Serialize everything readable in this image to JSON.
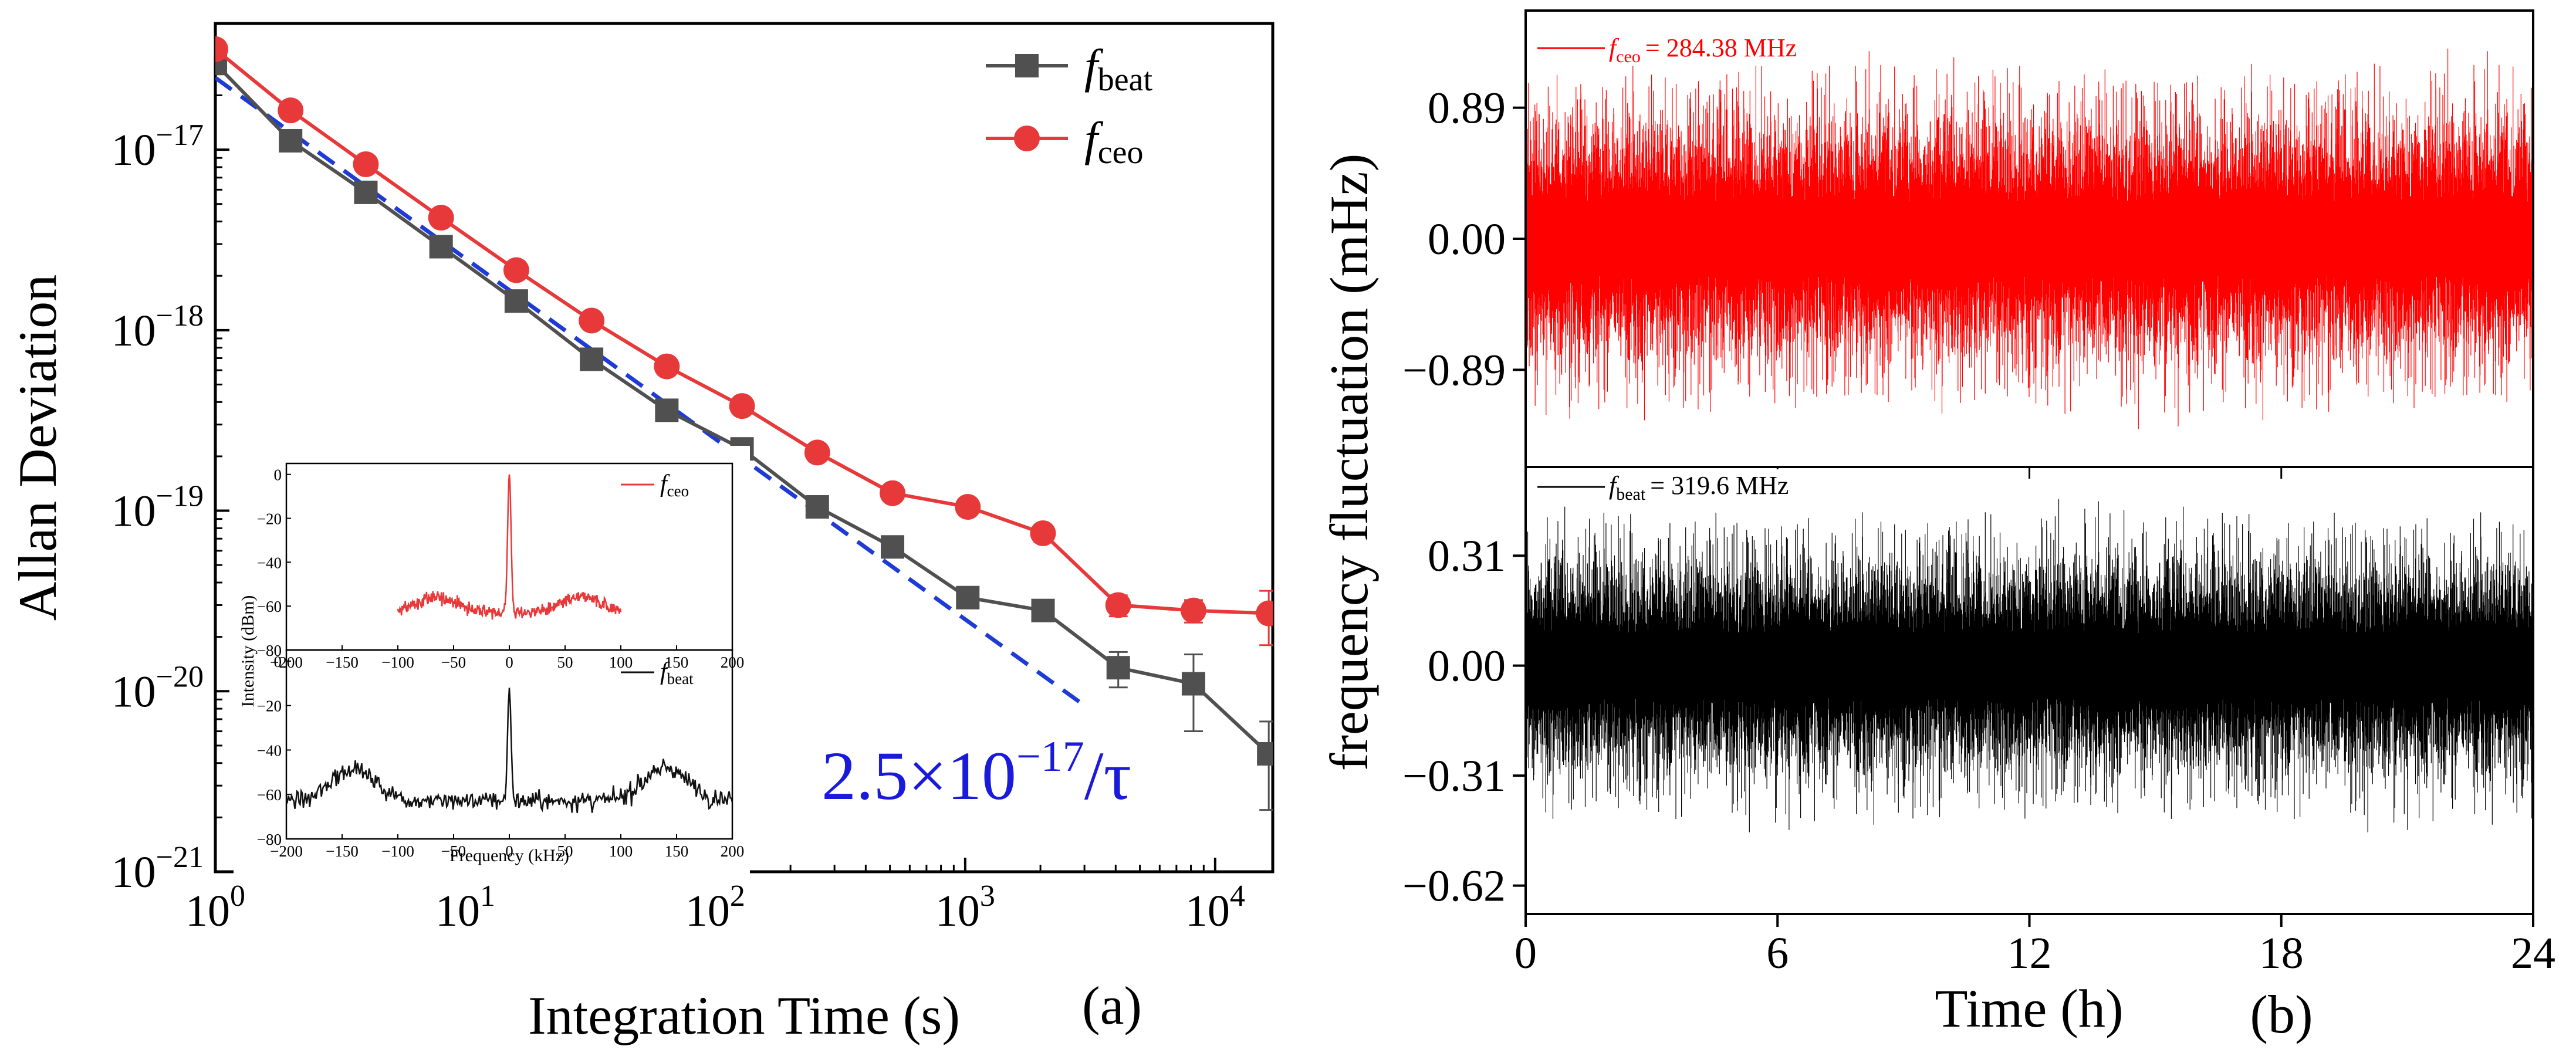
{
  "chart_data": [
    {
      "id": "a",
      "type": "line",
      "panel_label": "(a)",
      "xlabel": "Integration Time (s)",
      "ylabel": "Allan Deviation",
      "xscale": "log",
      "yscale": "log",
      "xlim": [
        1,
        17000
      ],
      "ylim": [
        1e-21,
        5e-17
      ],
      "x_ticks": [
        {
          "value": 1,
          "base": "10",
          "exp": "0"
        },
        {
          "value": 10,
          "base": "10",
          "exp": "1"
        },
        {
          "value": 100,
          "base": "10",
          "exp": "2"
        },
        {
          "value": 1000,
          "base": "10",
          "exp": "3"
        },
        {
          "value": 10000,
          "base": "10",
          "exp": "4"
        }
      ],
      "y_ticks": [
        {
          "value": 1e-21,
          "base": "10",
          "exp": "−21"
        },
        {
          "value": 1e-20,
          "base": "10",
          "exp": "−20"
        },
        {
          "value": 1e-19,
          "base": "10",
          "exp": "−19"
        },
        {
          "value": 1e-18,
          "base": "10",
          "exp": "−18"
        },
        {
          "value": 1e-17,
          "base": "10",
          "exp": "−17"
        }
      ],
      "legend_position": "top-right",
      "series": [
        {
          "name": "f",
          "sub": "beat",
          "color": "#505050",
          "marker": "square",
          "x": [
            1,
            2,
            4,
            8,
            16,
            32,
            64,
            128,
            256,
            512,
            1024,
            2048,
            4096,
            8192,
            16384
          ],
          "y": [
            3e-17,
            1.12e-17,
            5.8e-18,
            2.9e-18,
            1.45e-18,
            6.9e-19,
            3.6e-19,
            2.2e-19,
            1.05e-19,
            6.3e-20,
            3.3e-20,
            2.8e-20,
            1.35e-20,
            1.1e-20,
            4.5e-21
          ],
          "err": [
            0,
            0,
            0,
            0,
            0,
            0,
            0,
            0,
            0,
            0,
            0,
            3e-21,
            3e-21,
            5e-21,
            2.3e-21
          ]
        },
        {
          "name": "f",
          "sub": "ceo",
          "color": "#e8393a",
          "marker": "circle",
          "x": [
            1,
            2,
            4,
            8,
            16,
            32,
            64,
            128,
            256,
            512,
            1024,
            2048,
            4096,
            8192,
            16384
          ],
          "y": [
            3.6e-17,
            1.65e-17,
            8.3e-18,
            4.2e-18,
            2.15e-18,
            1.13e-18,
            6.3e-19,
            3.8e-19,
            2.1e-19,
            1.25e-19,
            1.05e-19,
            7.5e-20,
            3e-20,
            2.8e-20,
            2.7e-20
          ],
          "err": [
            0,
            0,
            0,
            0,
            0,
            0,
            0,
            0,
            0,
            0,
            0,
            8e-21,
            4e-21,
            4e-21,
            9e-21
          ]
        }
      ],
      "fit_line": {
        "coefficient": 2.5e-17,
        "x_range": [
          1,
          3000
        ],
        "color": "#1f3bd6",
        "label_pre": "2.5×10",
        "label_exp": "−17",
        "label_post": "/τ"
      },
      "inset": {
        "type": "line",
        "xlabel": "Frequency (kHz)",
        "ylabel": "Intensity (dBm)",
        "xlim": [
          -200,
          200
        ],
        "ylim": [
          -80,
          5
        ],
        "x_ticks": [
          "−200",
          "−150",
          "−100",
          "−50",
          "0",
          "50",
          "100",
          "150",
          "200"
        ],
        "x_tick_values": [
          -200,
          -150,
          -100,
          -50,
          0,
          50,
          100,
          150,
          200
        ],
        "y_ticks": [
          "0",
          "−20",
          "−40",
          "−60",
          "−80"
        ],
        "y_tick_values": [
          0,
          -20,
          -40,
          -60,
          -80
        ],
        "top": {
          "name": "f",
          "sub": "ceo",
          "color": "#e8393a",
          "x_range": [
            -100,
            100
          ],
          "peak_dbm": 0,
          "noise_floor_dbm": -64,
          "sideband_offset_khz": 65,
          "sideband_dbm": -56
        },
        "bottom": {
          "name": "f",
          "sub": "beat",
          "color": "#111111",
          "x_range": [
            -200,
            200
          ],
          "peak_dbm": -12,
          "noise_floor_dbm": -64,
          "sideband_offset_khz": 140,
          "sideband_dbm": -48
        }
      }
    },
    {
      "id": "b",
      "type": "line",
      "panel_label": "(b)",
      "xlabel": "Time (h)",
      "ylabel": "frequency fluctuation (mHz)",
      "xlim": [
        0,
        24
      ],
      "x_ticks": [
        0,
        6,
        12,
        18,
        24
      ],
      "subplots": [
        {
          "series_name": "f",
          "series_sub": "ceo",
          "legend_value": "= 284.38 MHz",
          "color": "#ff0000",
          "ylim": [
            -1.55,
            1.55
          ],
          "y_ticks": [
            {
              "value": 0.89,
              "label": "0.89"
            },
            {
              "value": 0.0,
              "label": "0.00"
            },
            {
              "value": -0.89,
              "label": "−0.89"
            }
          ],
          "typical_amplitude": 0.55,
          "peak_amplitude": 1.2
        },
        {
          "series_name": "f",
          "series_sub": "beat",
          "legend_value": "= 319.6 MHz",
          "color": "#000000",
          "ylim": [
            -0.7,
            0.56
          ],
          "y_ticks": [
            {
              "value": 0.31,
              "label": "0.31"
            },
            {
              "value": 0.0,
              "label": "0.00"
            },
            {
              "value": -0.31,
              "label": "−0.31"
            },
            {
              "value": -0.62,
              "label": "−0.62"
            }
          ],
          "typical_amplitude": 0.2,
          "peak_amplitude": 0.45
        }
      ]
    }
  ]
}
